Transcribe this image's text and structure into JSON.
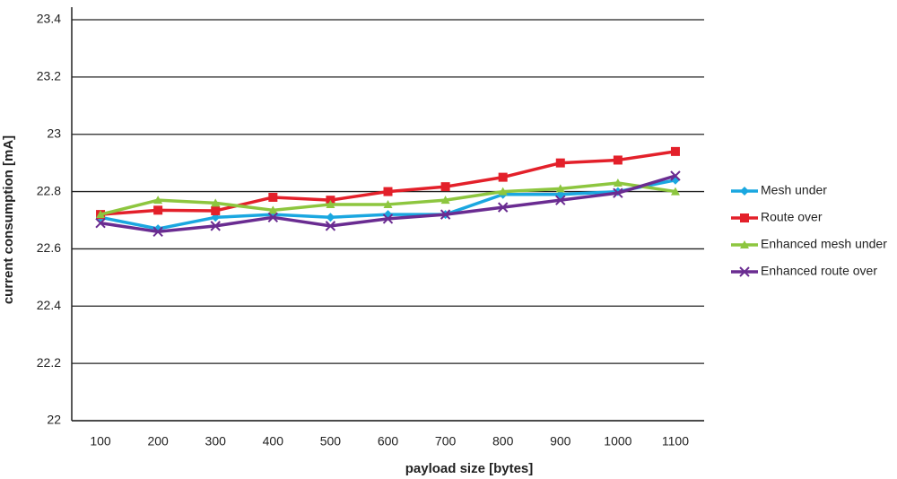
{
  "chart_data": {
    "type": "line",
    "x_label": "payload size [bytes]",
    "y_label": "current consumption [mA]",
    "categories": [
      "100",
      "200",
      "300",
      "400",
      "500",
      "600",
      "700",
      "800",
      "900",
      "1000",
      "1100"
    ],
    "series": [
      {
        "name": "Mesh under",
        "color": "#1aa7e0",
        "marker": "diamond",
        "values": [
          22.71,
          22.67,
          22.71,
          22.72,
          22.71,
          22.72,
          22.72,
          22.79,
          22.79,
          22.8,
          22.84
        ]
      },
      {
        "name": "Route over",
        "color": "#e3202a",
        "marker": "square",
        "values": [
          22.72,
          22.735,
          22.733,
          22.78,
          22.77,
          22.8,
          22.817,
          22.85,
          22.9,
          22.91,
          22.94
        ]
      },
      {
        "name": "Enhanced mesh under",
        "color": "#8dc63f",
        "marker": "triangle",
        "values": [
          22.72,
          22.77,
          22.76,
          22.735,
          22.755,
          22.755,
          22.77,
          22.8,
          22.81,
          22.83,
          22.8
        ]
      },
      {
        "name": "Enhanced route over",
        "color": "#6a2c91",
        "marker": "x",
        "values": [
          22.69,
          22.66,
          22.68,
          22.71,
          22.68,
          22.705,
          22.72,
          22.745,
          22.77,
          22.795,
          22.855
        ]
      }
    ],
    "ylim": [
      22,
      23.4
    ],
    "yticks": [
      22,
      22.2,
      22.4,
      22.6,
      22.8,
      23,
      23.2,
      23.4
    ],
    "grid": true,
    "legend": "right"
  }
}
